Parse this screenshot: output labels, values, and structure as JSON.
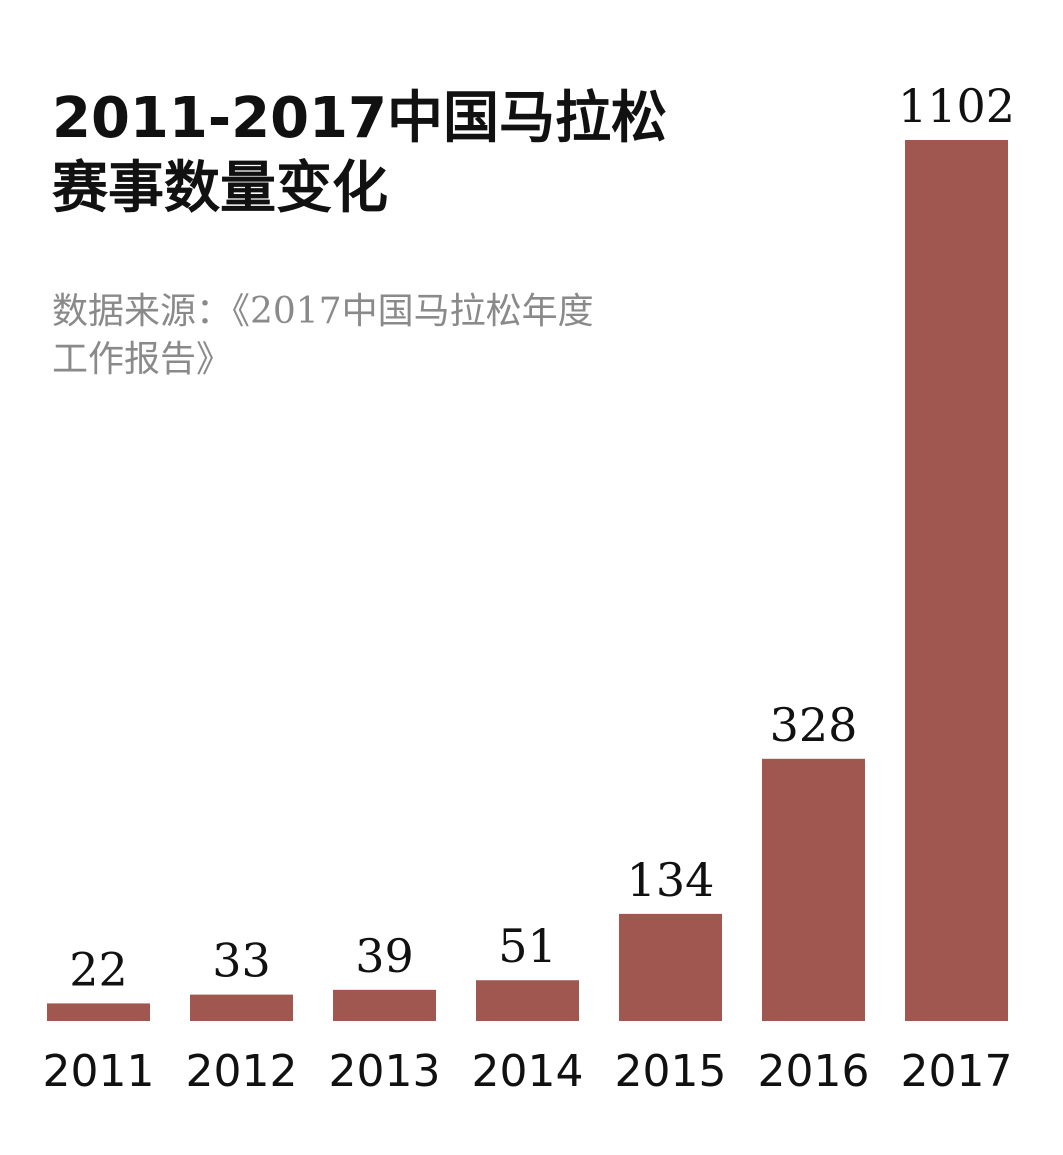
{
  "title": {
    "line1": "2011-2017中国马拉松",
    "line2": "赛事数量变化"
  },
  "source": {
    "line1": "数据来源：《2017中国马拉松年度",
    "line2": "工作报告》"
  },
  "colors": {
    "bar": "#a0574f",
    "text": "#111111",
    "source_text": "#8a8a8a"
  },
  "chart_data": {
    "type": "bar",
    "categories": [
      "2011",
      "2012",
      "2013",
      "2014",
      "2015",
      "2016",
      "2017"
    ],
    "values": [
      22,
      33,
      39,
      51,
      134,
      328,
      1102
    ],
    "title": "2011-2017中国马拉松赛事数量变化",
    "xlabel": "",
    "ylabel": "",
    "ylim": [
      0,
      1102
    ],
    "grid": false,
    "legend": "none",
    "data_labels": true
  }
}
